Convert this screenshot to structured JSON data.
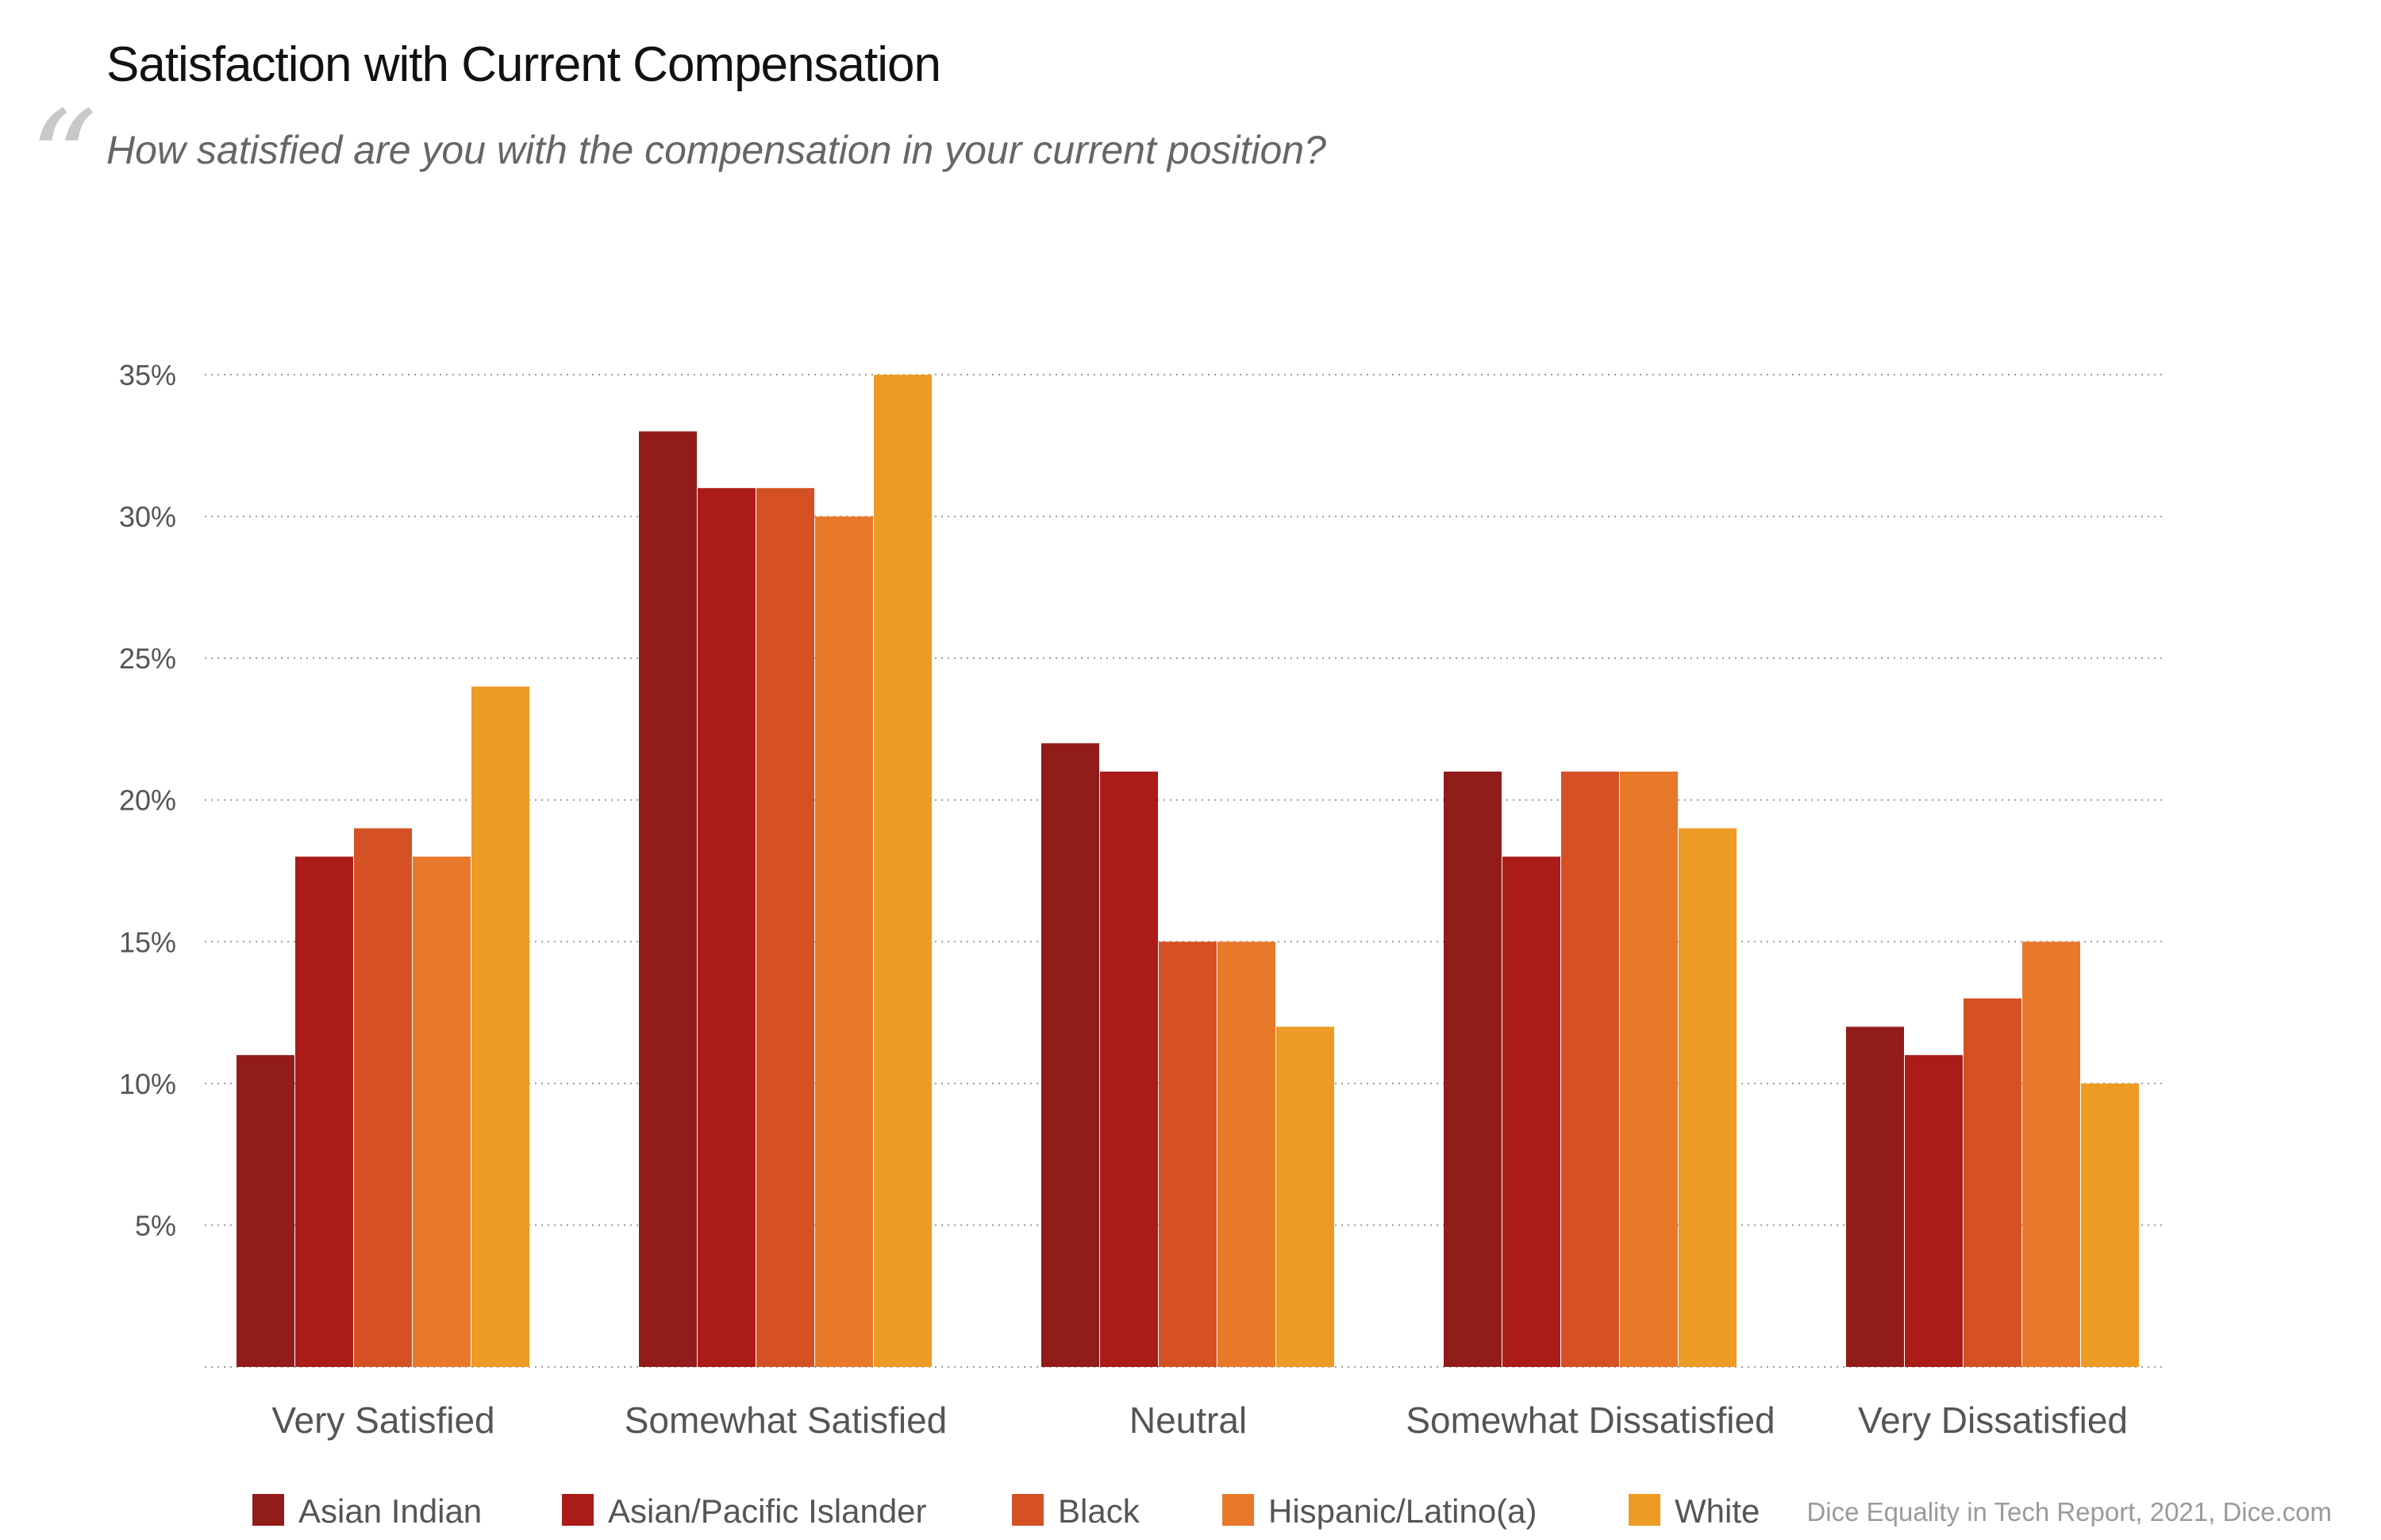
{
  "title": "Satisfaction with Current Compensation",
  "quote_symbol": "“",
  "subtitle": "How satisfied are you with the compensation in your current position?",
  "source": "Dice Equality in Tech Report, 2021, Dice.com",
  "chart_data": {
    "type": "bar",
    "categories": [
      "Very Satisfied",
      "Somewhat Satisfied",
      "Neutral",
      "Somewhat Dissatisfied",
      "Very Dissatisfied"
    ],
    "series": [
      {
        "name": "Asian Indian",
        "color": "#921c19",
        "values": [
          11,
          33,
          22,
          21,
          12
        ]
      },
      {
        "name": "Asian/Pacific Islander",
        "color": "#ab1b18",
        "values": [
          18,
          31,
          21,
          18,
          11
        ]
      },
      {
        "name": "Black",
        "color": "#d55125",
        "values": [
          19,
          31,
          15,
          21,
          13
        ]
      },
      {
        "name": "Hispanic/Latino(a)",
        "color": "#e8782a",
        "values": [
          18,
          30,
          15,
          21,
          15
        ]
      },
      {
        "name": "White",
        "color": "#ed9b25",
        "values": [
          24,
          35,
          12,
          19,
          10
        ]
      }
    ],
    "yticks": [
      {
        "value": 5,
        "label": "5%"
      },
      {
        "value": 10,
        "label": "10%"
      },
      {
        "value": 15,
        "label": "15%"
      },
      {
        "value": 20,
        "label": "20%"
      },
      {
        "value": 25,
        "label": "25%"
      },
      {
        "value": 30,
        "label": "30%"
      },
      {
        "value": 35,
        "label": "35%"
      }
    ],
    "ylim": [
      0,
      35
    ],
    "grid": true,
    "legend_position": "bottom",
    "xlabel": "",
    "ylabel": ""
  }
}
